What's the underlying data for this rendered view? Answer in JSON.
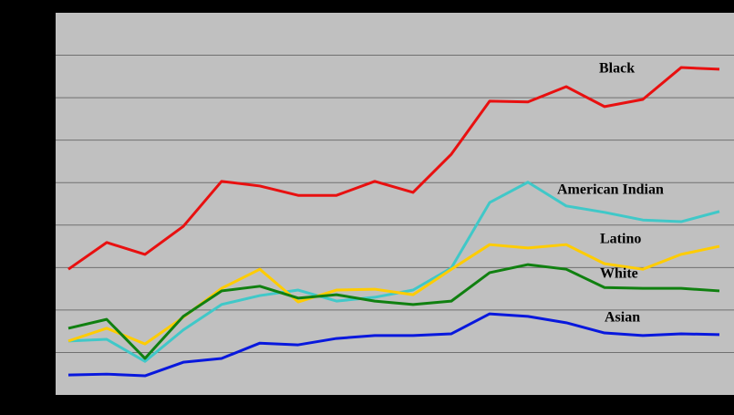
{
  "chart_data": {
    "type": "line",
    "categories": [
      null,
      null,
      null,
      null,
      null,
      null,
      null,
      null,
      null,
      null,
      null,
      null,
      null,
      null,
      null,
      null,
      null,
      null
    ],
    "ylim": [
      0,
      9
    ],
    "yticks": [
      1,
      2,
      3,
      4,
      5,
      6,
      7,
      8
    ],
    "grid": true,
    "series": [
      {
        "name": "Black",
        "color": "#e81010",
        "values": [
          2.96,
          3.59,
          3.31,
          3.97,
          5.03,
          4.92,
          4.7,
          4.7,
          5.03,
          4.77,
          5.67,
          6.92,
          6.9,
          7.26,
          6.79,
          6.96,
          7.71,
          7.67
        ]
      },
      {
        "name": "American Indian",
        "color": "#40c8c8",
        "values": [
          1.27,
          1.31,
          0.79,
          1.53,
          2.13,
          2.34,
          2.47,
          2.21,
          2.3,
          2.47,
          2.99,
          4.53,
          5.01,
          4.45,
          4.3,
          4.12,
          4.08,
          4.32
        ]
      },
      {
        "name": "Latino",
        "color": "#ffcc00",
        "values": [
          1.27,
          1.57,
          1.2,
          1.83,
          2.51,
          2.96,
          2.19,
          2.47,
          2.49,
          2.36,
          2.96,
          3.54,
          3.46,
          3.54,
          3.09,
          2.96,
          3.31,
          3.5
        ]
      },
      {
        "name": "White",
        "color": "#108010",
        "values": [
          1.57,
          1.78,
          0.86,
          1.85,
          2.45,
          2.56,
          2.28,
          2.36,
          2.21,
          2.13,
          2.21,
          2.88,
          3.07,
          2.96,
          2.53,
          2.51,
          2.51,
          2.45
        ]
      },
      {
        "name": "Asian",
        "color": "#0818dd",
        "values": [
          0.47,
          0.49,
          0.45,
          0.77,
          0.86,
          1.22,
          1.18,
          1.33,
          1.4,
          1.4,
          1.44,
          1.91,
          1.85,
          1.7,
          1.46,
          1.4,
          1.44,
          1.42
        ]
      }
    ]
  }
}
